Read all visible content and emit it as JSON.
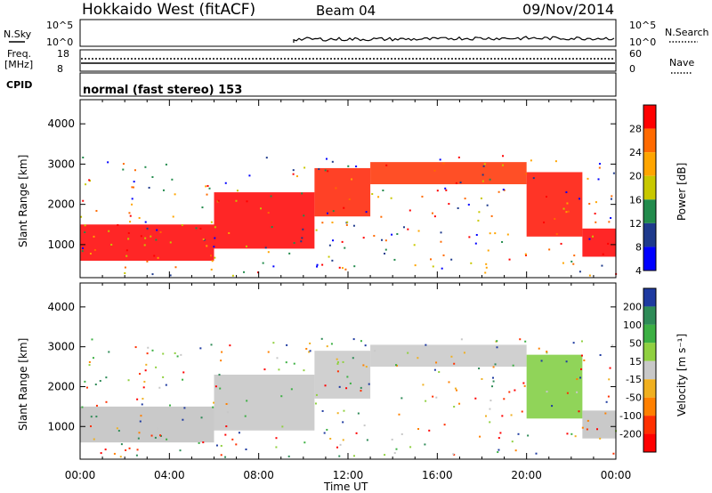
{
  "header": {
    "title": "Hokkaido West (fitACF)",
    "beam": "Beam 04",
    "date": "09/Nov/2014"
  },
  "noise_panel": {
    "left_label": "N.Sky",
    "right_label": "N.Search",
    "left_ticks": [
      "10^5",
      "10^0"
    ],
    "right_ticks": [
      "10^5",
      "10^0"
    ]
  },
  "freq_panel": {
    "left_label_1": "Freq.",
    "left_label_2": "[MHz]",
    "left_ticks": [
      "18",
      "8"
    ],
    "right_label": "Nave",
    "right_ticks": [
      "60",
      "0"
    ],
    "cpid_label": "CPID",
    "cpid_text": "normal (fast stereo) 153"
  },
  "chart_data": [
    {
      "type": "heatmap",
      "name": "power",
      "ylabel": "Slant Range [km]",
      "y_ticks": [
        1000,
        2000,
        3000,
        4000
      ],
      "ylim": [
        180,
        4600
      ],
      "x_ticks": [
        "00:00",
        "04:00",
        "08:00",
        "12:00",
        "16:00",
        "20:00",
        "00:00"
      ],
      "xlim_hours": [
        0,
        24
      ],
      "colorbar": {
        "label": "Power [dB]",
        "ticks": [
          "28",
          "24",
          "20",
          "16",
          "12",
          "8",
          "4"
        ],
        "colors": [
          "#ff0000",
          "#ff6a00",
          "#ffa500",
          "#c8c800",
          "#228b4c",
          "#1e3a8c",
          "#0000ff"
        ]
      },
      "echo_bands": [
        {
          "start_hour": 0.0,
          "end_hour": 6.0,
          "low_km": 600,
          "high_km": 1500,
          "color": "#ff0000"
        },
        {
          "start_hour": 6.0,
          "end_hour": 10.5,
          "low_km": 900,
          "high_km": 2300,
          "color": "#ff0000"
        },
        {
          "start_hour": 10.5,
          "end_hour": 13.0,
          "low_km": 1700,
          "high_km": 2900,
          "color": "#ff2000"
        },
        {
          "start_hour": 13.0,
          "end_hour": 20.0,
          "low_km": 2500,
          "high_km": 3050,
          "color": "#ff3000"
        },
        {
          "start_hour": 20.0,
          "end_hour": 22.5,
          "low_km": 1200,
          "high_km": 2800,
          "color": "#ff1000"
        },
        {
          "start_hour": 22.5,
          "end_hour": 24.0,
          "low_km": 700,
          "high_km": 1400,
          "color": "#ff0000"
        }
      ]
    },
    {
      "type": "heatmap",
      "name": "velocity",
      "ylabel": "Slant Range [km]",
      "y_ticks": [
        1000,
        2000,
        3000,
        4000
      ],
      "ylim": [
        180,
        4600
      ],
      "x_ticks": [
        "00:00",
        "04:00",
        "08:00",
        "12:00",
        "16:00",
        "20:00",
        "00:00"
      ],
      "xlim_hours": [
        0,
        24
      ],
      "xlabel": "Time UT",
      "colorbar": {
        "label": "Velocity [m s⁻¹]",
        "ticks": [
          "200",
          "100",
          "50",
          "15",
          "-15",
          "-50",
          "-100",
          "-200"
        ],
        "colors": [
          "#1e3aa0",
          "#2e8b57",
          "#3cb043",
          "#90d040",
          "#c8c8c8",
          "#f0b020",
          "#ff8000",
          "#ff3000",
          "#ff0000"
        ]
      },
      "echo_bands": [
        {
          "start_hour": 0.0,
          "end_hour": 6.0,
          "low_km": 600,
          "high_km": 1500,
          "color": "#c0c0c0"
        },
        {
          "start_hour": 6.0,
          "end_hour": 10.5,
          "low_km": 900,
          "high_km": 2300,
          "color": "#c4c4c4"
        },
        {
          "start_hour": 10.5,
          "end_hour": 13.0,
          "low_km": 1700,
          "high_km": 2900,
          "color": "#c8c8c8"
        },
        {
          "start_hour": 13.0,
          "end_hour": 20.0,
          "low_km": 2500,
          "high_km": 3050,
          "color": "#c8c8c8"
        },
        {
          "start_hour": 20.0,
          "end_hour": 22.5,
          "low_km": 1200,
          "high_km": 2800,
          "color": "#7ccd3c"
        },
        {
          "start_hour": 22.5,
          "end_hour": 24.0,
          "low_km": 700,
          "high_km": 1400,
          "color": "#c0c0c0"
        }
      ]
    }
  ]
}
